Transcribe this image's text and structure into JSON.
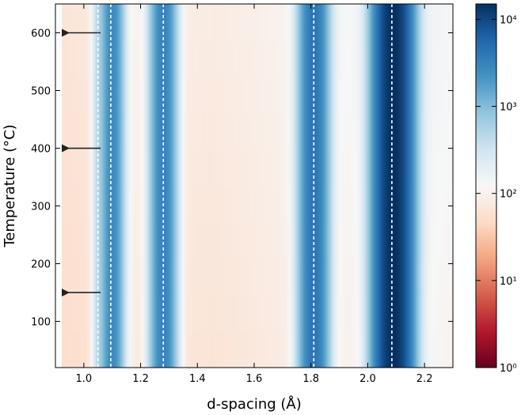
{
  "chart_data": {
    "type": "heatmap",
    "xlabel": "d-spacing (Å)",
    "ylabel": "Temperature (°C)",
    "xlim": [
      0.9,
      2.3
    ],
    "ylim": [
      20,
      650
    ],
    "x_ticks": [
      {
        "value": 1.0,
        "label": "1.0"
      },
      {
        "value": 1.2,
        "label": "1.2"
      },
      {
        "value": 1.4,
        "label": "1.4"
      },
      {
        "value": 1.6,
        "label": "1.6"
      },
      {
        "value": 1.8,
        "label": "1.8"
      },
      {
        "value": 2.0,
        "label": "2.0"
      },
      {
        "value": 2.2,
        "label": "2.2"
      }
    ],
    "y_ticks": [
      {
        "value": 100,
        "label": "100"
      },
      {
        "value": 200,
        "label": "200"
      },
      {
        "value": 300,
        "label": "300"
      },
      {
        "value": 400,
        "label": "400"
      },
      {
        "value": 500,
        "label": "500"
      },
      {
        "value": 600,
        "label": "600"
      }
    ],
    "colorbar": {
      "scale": "log",
      "range": [
        1,
        15000
      ],
      "colormap": "RdBu",
      "ticks": [
        {
          "value": 1,
          "label": "10⁰"
        },
        {
          "value": 10,
          "label": "10¹"
        },
        {
          "value": 100,
          "label": "10²"
        },
        {
          "value": 1000,
          "label": "10³"
        },
        {
          "value": 10000,
          "label": "10⁴"
        }
      ]
    },
    "background_intensity": {
      "x": [
        0.92,
        1.0,
        1.05,
        1.1,
        1.2,
        1.3,
        1.45,
        1.6,
        1.75,
        1.9,
        2.0,
        2.15,
        2.25,
        2.3
      ],
      "values": [
        60,
        65,
        90,
        110,
        90,
        80,
        75,
        85,
        100,
        115,
        120,
        140,
        130,
        120
      ]
    },
    "peaks": [
      {
        "d": 1.05,
        "intensity": 250,
        "width": 0.012
      },
      {
        "d": 1.1,
        "intensity": 2500,
        "width": 0.022
      },
      {
        "d": 1.28,
        "intensity": 3000,
        "width": 0.025
      },
      {
        "d": 1.81,
        "intensity": 4000,
        "width": 0.028
      },
      {
        "d": 2.09,
        "intensity": 15000,
        "width": 0.035
      }
    ],
    "reference_lines_d": [
      1.05,
      1.095,
      1.28,
      1.81,
      2.085
    ],
    "temperature_markers": [
      600,
      400,
      150
    ]
  },
  "colors": {
    "arrow": "#222222",
    "reference_line": "#ffffff",
    "frame": "#000000"
  }
}
